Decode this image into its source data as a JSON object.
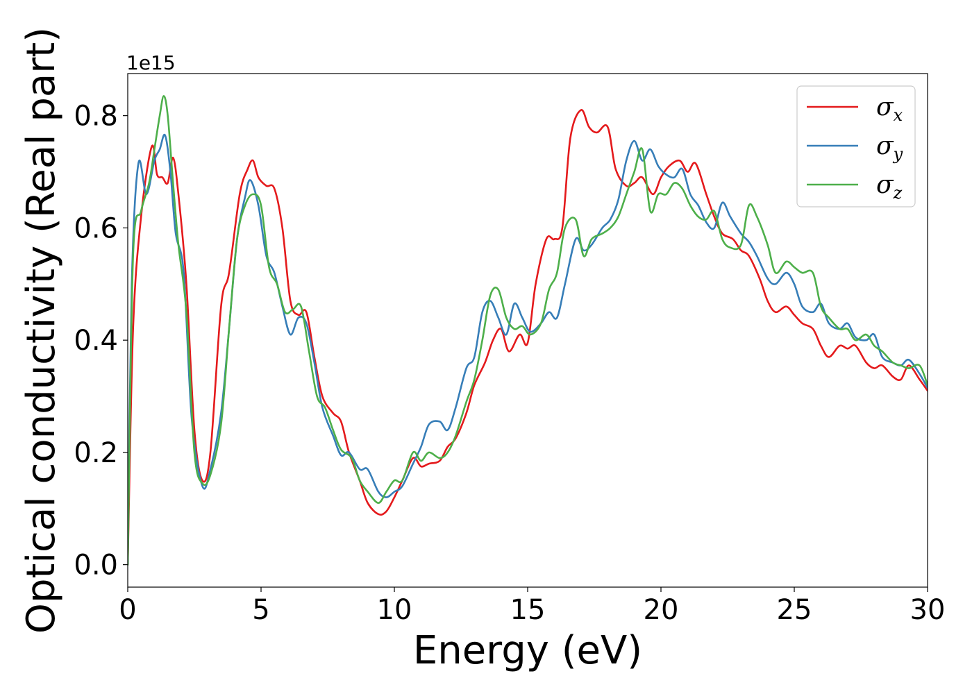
{
  "chart_data": {
    "type": "line",
    "xlabel": "Energy (eV)",
    "ylabel": "Optical conductivity (Real part)",
    "y_offset_label": "1e15",
    "y_scale": 1000000000000000.0,
    "xlim": [
      0,
      30
    ],
    "ylim": [
      -0.04,
      0.875
    ],
    "xticks": [
      0,
      5,
      10,
      15,
      20,
      25,
      30
    ],
    "xtick_labels": [
      "0",
      "5",
      "10",
      "15",
      "20",
      "25",
      "30"
    ],
    "yticks": [
      0.0,
      0.2,
      0.4,
      0.6,
      0.8
    ],
    "ytick_labels": [
      "0.0",
      "0.2",
      "0.4",
      "0.6",
      "0.8"
    ],
    "grid": false,
    "legend_position": "top-right",
    "series": [
      {
        "name": "σx",
        "symbol": "σ",
        "subscript": "x",
        "color": "#e41a1c",
        "x": [
          0,
          0.2,
          0.5,
          0.9,
          1.1,
          1.3,
          1.5,
          1.7,
          1.9,
          2.2,
          2.5,
          2.8,
          3.1,
          3.5,
          3.8,
          4.2,
          4.5,
          4.7,
          4.9,
          5.2,
          5.5,
          5.8,
          6.1,
          6.4,
          6.7,
          7.0,
          7.3,
          7.7,
          8.0,
          8.3,
          8.7,
          9.0,
          9.4,
          9.7,
          10.0,
          10.3,
          10.7,
          11.0,
          11.3,
          11.7,
          12.0,
          12.3,
          12.7,
          13.0,
          13.4,
          13.7,
          14.0,
          14.3,
          14.7,
          15.0,
          15.3,
          15.7,
          16.0,
          16.3,
          16.6,
          17.0,
          17.3,
          17.6,
          18.0,
          18.3,
          18.7,
          19.0,
          19.3,
          19.7,
          20.0,
          20.3,
          20.7,
          21.0,
          21.3,
          21.7,
          22.0,
          22.3,
          22.7,
          23.0,
          23.3,
          23.7,
          24.0,
          24.3,
          24.7,
          25.0,
          25.3,
          25.7,
          26.0,
          26.3,
          26.7,
          27.0,
          27.3,
          27.7,
          28.0,
          28.3,
          28.7,
          29.0,
          29.3,
          29.7,
          30.0
        ],
        "y": [
          0.0,
          0.42,
          0.62,
          0.745,
          0.695,
          0.69,
          0.68,
          0.725,
          0.66,
          0.5,
          0.24,
          0.15,
          0.2,
          0.46,
          0.52,
          0.66,
          0.705,
          0.72,
          0.69,
          0.675,
          0.67,
          0.6,
          0.47,
          0.445,
          0.45,
          0.37,
          0.3,
          0.27,
          0.255,
          0.2,
          0.15,
          0.11,
          0.09,
          0.095,
          0.12,
          0.15,
          0.19,
          0.175,
          0.18,
          0.185,
          0.21,
          0.225,
          0.27,
          0.32,
          0.36,
          0.4,
          0.42,
          0.38,
          0.41,
          0.395,
          0.5,
          0.58,
          0.58,
          0.6,
          0.76,
          0.81,
          0.78,
          0.77,
          0.78,
          0.705,
          0.675,
          0.68,
          0.69,
          0.66,
          0.69,
          0.71,
          0.72,
          0.7,
          0.715,
          0.66,
          0.62,
          0.59,
          0.58,
          0.56,
          0.55,
          0.51,
          0.47,
          0.45,
          0.46,
          0.445,
          0.43,
          0.42,
          0.39,
          0.37,
          0.39,
          0.385,
          0.39,
          0.36,
          0.35,
          0.355,
          0.335,
          0.33,
          0.355,
          0.33,
          0.31
        ]
      },
      {
        "name": "σy",
        "symbol": "σ",
        "subscript": "y",
        "color": "#377eb8",
        "x": [
          0,
          0.15,
          0.4,
          0.7,
          1.0,
          1.2,
          1.4,
          1.6,
          1.8,
          2.1,
          2.4,
          2.8,
          3.1,
          3.5,
          3.8,
          4.1,
          4.4,
          4.6,
          4.9,
          5.2,
          5.5,
          5.8,
          6.1,
          6.4,
          6.7,
          7.0,
          7.3,
          7.7,
          8.0,
          8.3,
          8.7,
          9.0,
          9.4,
          9.7,
          10.0,
          10.3,
          10.7,
          11.0,
          11.3,
          11.7,
          12.0,
          12.3,
          12.7,
          13.0,
          13.3,
          13.6,
          13.9,
          14.2,
          14.5,
          14.8,
          15.1,
          15.5,
          15.8,
          16.1,
          16.4,
          16.8,
          17.1,
          17.4,
          17.8,
          18.1,
          18.4,
          18.7,
          19.0,
          19.3,
          19.6,
          19.9,
          20.2,
          20.5,
          20.8,
          21.1,
          21.4,
          21.7,
          22.0,
          22.3,
          22.6,
          23.0,
          23.3,
          23.6,
          24.0,
          24.3,
          24.7,
          25.0,
          25.3,
          25.7,
          26.0,
          26.3,
          26.7,
          27.0,
          27.3,
          27.7,
          28.0,
          28.3,
          28.7,
          29.0,
          29.3,
          29.7,
          30.0
        ],
        "y": [
          0.0,
          0.5,
          0.715,
          0.66,
          0.72,
          0.74,
          0.765,
          0.7,
          0.59,
          0.52,
          0.26,
          0.14,
          0.17,
          0.27,
          0.42,
          0.58,
          0.655,
          0.685,
          0.64,
          0.55,
          0.52,
          0.46,
          0.41,
          0.44,
          0.43,
          0.36,
          0.28,
          0.23,
          0.195,
          0.2,
          0.17,
          0.17,
          0.13,
          0.12,
          0.13,
          0.14,
          0.18,
          0.21,
          0.25,
          0.255,
          0.24,
          0.28,
          0.35,
          0.37,
          0.45,
          0.47,
          0.44,
          0.41,
          0.465,
          0.44,
          0.415,
          0.43,
          0.45,
          0.44,
          0.5,
          0.58,
          0.56,
          0.57,
          0.6,
          0.615,
          0.65,
          0.72,
          0.755,
          0.72,
          0.74,
          0.71,
          0.695,
          0.69,
          0.705,
          0.66,
          0.64,
          0.61,
          0.6,
          0.645,
          0.62,
          0.59,
          0.575,
          0.55,
          0.51,
          0.5,
          0.52,
          0.5,
          0.46,
          0.45,
          0.465,
          0.43,
          0.42,
          0.43,
          0.405,
          0.4,
          0.41,
          0.37,
          0.36,
          0.355,
          0.365,
          0.34,
          0.315
        ]
      },
      {
        "name": "σz",
        "symbol": "σ",
        "subscript": "z",
        "color": "#4daf4a",
        "x": [
          0,
          0.2,
          0.5,
          0.8,
          1.0,
          1.2,
          1.35,
          1.5,
          1.7,
          1.9,
          2.2,
          2.5,
          2.8,
          3.1,
          3.5,
          3.8,
          4.1,
          4.4,
          4.7,
          5.0,
          5.3,
          5.6,
          5.9,
          6.2,
          6.5,
          6.8,
          7.1,
          7.4,
          7.7,
          8.0,
          8.4,
          8.7,
          9.0,
          9.4,
          9.7,
          10.0,
          10.3,
          10.7,
          11.0,
          11.3,
          11.7,
          12.0,
          12.3,
          12.7,
          13.0,
          13.3,
          13.6,
          13.9,
          14.2,
          14.5,
          14.8,
          15.1,
          15.5,
          15.8,
          16.1,
          16.4,
          16.8,
          17.1,
          17.4,
          17.8,
          18.1,
          18.4,
          18.7,
          19.0,
          19.3,
          19.6,
          19.9,
          20.2,
          20.5,
          20.8,
          21.1,
          21.4,
          21.7,
          22.0,
          22.3,
          22.6,
          23.0,
          23.3,
          23.6,
          24.0,
          24.3,
          24.7,
          25.0,
          25.3,
          25.7,
          26.0,
          26.3,
          26.7,
          27.0,
          27.3,
          27.7,
          28.0,
          28.3,
          28.7,
          29.0,
          29.3,
          29.7,
          30.0
        ],
        "y": [
          0.0,
          0.55,
          0.63,
          0.68,
          0.74,
          0.8,
          0.835,
          0.8,
          0.68,
          0.57,
          0.45,
          0.2,
          0.145,
          0.16,
          0.25,
          0.42,
          0.58,
          0.64,
          0.66,
          0.64,
          0.53,
          0.5,
          0.45,
          0.455,
          0.46,
          0.38,
          0.3,
          0.28,
          0.24,
          0.205,
          0.19,
          0.15,
          0.13,
          0.11,
          0.13,
          0.15,
          0.15,
          0.2,
          0.185,
          0.2,
          0.19,
          0.2,
          0.23,
          0.29,
          0.33,
          0.4,
          0.48,
          0.49,
          0.44,
          0.42,
          0.425,
          0.41,
          0.43,
          0.49,
          0.52,
          0.6,
          0.615,
          0.55,
          0.58,
          0.59,
          0.6,
          0.62,
          0.66,
          0.7,
          0.74,
          0.63,
          0.66,
          0.66,
          0.68,
          0.67,
          0.64,
          0.62,
          0.615,
          0.63,
          0.58,
          0.565,
          0.57,
          0.64,
          0.62,
          0.57,
          0.52,
          0.54,
          0.53,
          0.52,
          0.52,
          0.46,
          0.44,
          0.42,
          0.42,
          0.4,
          0.41,
          0.39,
          0.38,
          0.36,
          0.355,
          0.35,
          0.355,
          0.32
        ]
      }
    ]
  }
}
